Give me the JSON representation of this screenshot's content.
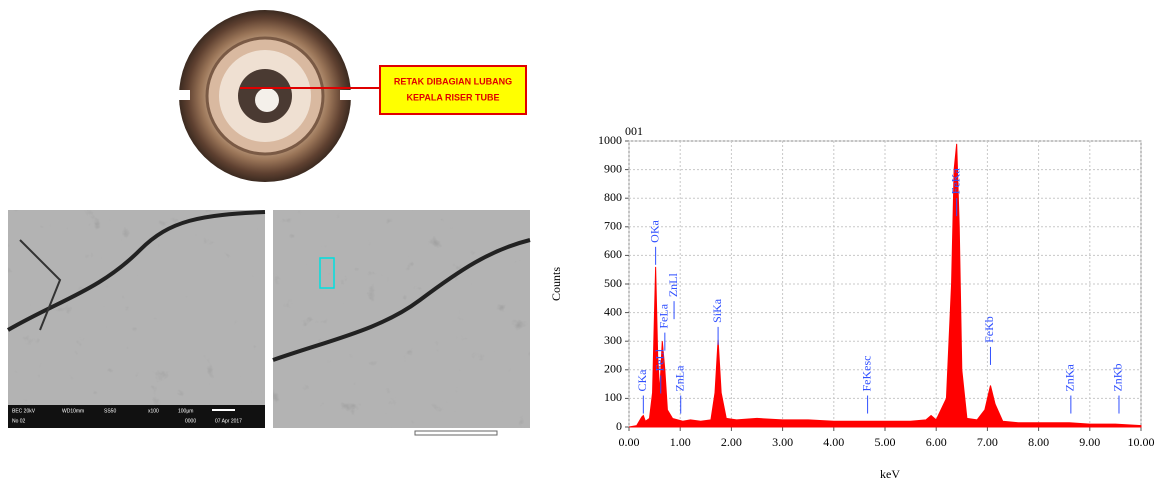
{
  "figure": {
    "callout": [
      "RETAK DIBAGIAN LUBANG",
      "KEPALA RISER TUBE"
    ],
    "sem_info": [
      "BEC  20kV",
      "WD10mm",
      "SS50",
      "x100",
      "100µm",
      "No 02",
      "0000",
      "07 Apr 2017"
    ]
  },
  "chart_data": {
    "type": "area",
    "title": "001",
    "x_label": "keV",
    "y_label": "Counts",
    "color": "#ff0000",
    "grid": true,
    "xlim": [
      0,
      10
    ],
    "ylim": [
      0,
      1000
    ],
    "xticks": [
      {
        "value": 0,
        "label": "0.00"
      },
      {
        "value": 1,
        "label": "1.00"
      },
      {
        "value": 2,
        "label": "2.00"
      },
      {
        "value": 3,
        "label": "3.00"
      },
      {
        "value": 4,
        "label": "4.00"
      },
      {
        "value": 5,
        "label": "5.00"
      },
      {
        "value": 6,
        "label": "6.00"
      },
      {
        "value": 7,
        "label": "7.00"
      },
      {
        "value": 8,
        "label": "8.00"
      },
      {
        "value": 9,
        "label": "9.00"
      },
      {
        "value": 10,
        "label": "10.00"
      }
    ],
    "yticks": [
      0,
      100,
      200,
      300,
      400,
      500,
      600,
      700,
      800,
      900,
      1000
    ],
    "x": [
      0,
      0.15,
      0.25,
      0.28,
      0.32,
      0.4,
      0.46,
      0.52,
      0.56,
      0.6,
      0.65,
      0.7,
      0.75,
      0.85,
      0.95,
      1.05,
      1.2,
      1.4,
      1.6,
      1.68,
      1.74,
      1.8,
      1.9,
      2.1,
      2.5,
      3.0,
      3.5,
      4.0,
      4.5,
      5.0,
      5.5,
      5.8,
      5.9,
      6.0,
      6.2,
      6.3,
      6.35,
      6.4,
      6.45,
      6.5,
      6.6,
      6.8,
      6.95,
      7.06,
      7.15,
      7.3,
      7.6,
      8.0,
      8.6,
      9.0,
      9.5,
      10.0
    ],
    "values": [
      0,
      5,
      35,
      40,
      20,
      30,
      120,
      560,
      250,
      120,
      300,
      200,
      60,
      30,
      25,
      20,
      25,
      20,
      25,
      120,
      305,
      120,
      30,
      25,
      30,
      25,
      25,
      20,
      20,
      20,
      20,
      25,
      40,
      25,
      100,
      500,
      900,
      990,
      700,
      200,
      30,
      25,
      60,
      145,
      80,
      20,
      15,
      15,
      15,
      10,
      10,
      5
    ],
    "annotations": [
      {
        "text": "CKa",
        "x": 0.28,
        "y": 110
      },
      {
        "text": "OKa",
        "x": 0.52,
        "y": 630
      },
      {
        "text": "ZnLl",
        "x": 0.88,
        "y": 440
      },
      {
        "text": "FeLa",
        "x": 0.7,
        "y": 330
      },
      {
        "text": "FeLl",
        "x": 0.62,
        "y": 180
      },
      {
        "text": "ZnLa",
        "x": 1.01,
        "y": 110
      },
      {
        "text": "SiKa",
        "x": 1.74,
        "y": 350
      },
      {
        "text": "FeKesc",
        "x": 4.66,
        "y": 110
      },
      {
        "text": "FeKa",
        "x": 6.4,
        "y": 800
      },
      {
        "text": "FeKb",
        "x": 7.06,
        "y": 280
      },
      {
        "text": "ZnKa",
        "x": 8.63,
        "y": 110
      },
      {
        "text": "ZnKb",
        "x": 9.57,
        "y": 110
      }
    ]
  }
}
